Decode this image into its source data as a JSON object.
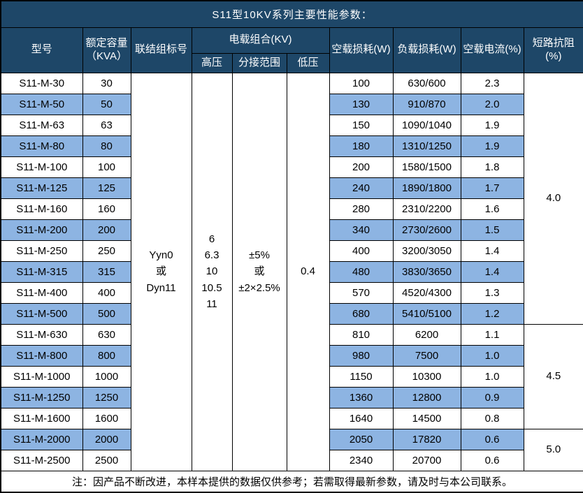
{
  "title": "S11型10KV系列主要性能参数：",
  "colors": {
    "header_bg": "#1e4768",
    "header_text": "#ffffff",
    "band_row_bg": "#8db4e2",
    "border": "#000000"
  },
  "header": {
    "model": "型号",
    "capacity": "额定容量\n（KVA）",
    "connection": "联结组标号",
    "voltage_group": "电载组合(KV)",
    "hv": "高压",
    "tap_range": "分接范围",
    "lv": "低压",
    "no_load_loss": "空载损耗(W)",
    "load_loss": "负载损耗(W)",
    "no_load_current": "空载电流(%)",
    "impedance": "短路抗阻(%)"
  },
  "merged": {
    "connection_group": "Yyn0\n或\nDyn11",
    "hv_values": "6\n6.3\n10\n10.5\n11",
    "tap_range": "±5%\n或\n±2×2.5%",
    "lv_value": "0.4"
  },
  "rows": [
    {
      "model": "S11-M-30",
      "capacity": "30",
      "no_load_loss": "100",
      "load_loss": "630/600",
      "no_load_current": "2.3"
    },
    {
      "model": "S11-M-50",
      "capacity": "50",
      "no_load_loss": "130",
      "load_loss": "910/870",
      "no_load_current": "2.0"
    },
    {
      "model": "S11-M-63",
      "capacity": "63",
      "no_load_loss": "150",
      "load_loss": "1090/1040",
      "no_load_current": "1.9"
    },
    {
      "model": "S11-M-80",
      "capacity": "80",
      "no_load_loss": "180",
      "load_loss": "1310/1250",
      "no_load_current": "1.9"
    },
    {
      "model": "S11-M-100",
      "capacity": "100",
      "no_load_loss": "200",
      "load_loss": "1580/1500",
      "no_load_current": "1.8"
    },
    {
      "model": "S11-M-125",
      "capacity": "125",
      "no_load_loss": "240",
      "load_loss": "1890/1800",
      "no_load_current": "1.7"
    },
    {
      "model": "S11-M-160",
      "capacity": "160",
      "no_load_loss": "280",
      "load_loss": "2310/2200",
      "no_load_current": "1.6"
    },
    {
      "model": "S11-M-200",
      "capacity": "200",
      "no_load_loss": "340",
      "load_loss": "2730/2600",
      "no_load_current": "1.5"
    },
    {
      "model": "S11-M-250",
      "capacity": "250",
      "no_load_loss": "400",
      "load_loss": "3200/3050",
      "no_load_current": "1.4"
    },
    {
      "model": "S11-M-315",
      "capacity": "315",
      "no_load_loss": "480",
      "load_loss": "3830/3650",
      "no_load_current": "1.4"
    },
    {
      "model": "S11-M-400",
      "capacity": "400",
      "no_load_loss": "570",
      "load_loss": "4520/4300",
      "no_load_current": "1.3"
    },
    {
      "model": "S11-M-500",
      "capacity": "500",
      "no_load_loss": "680",
      "load_loss": "5410/5100",
      "no_load_current": "1.2"
    },
    {
      "model": "S11-M-630",
      "capacity": "630",
      "no_load_loss": "810",
      "load_loss": "6200",
      "no_load_current": "1.1"
    },
    {
      "model": "S11-M-800",
      "capacity": "800",
      "no_load_loss": "980",
      "load_loss": "7500",
      "no_load_current": "1.0"
    },
    {
      "model": "S11-M-1000",
      "capacity": "1000",
      "no_load_loss": "1150",
      "load_loss": "10300",
      "no_load_current": "1.0"
    },
    {
      "model": "S11-M-1250",
      "capacity": "1250",
      "no_load_loss": "1360",
      "load_loss": "12800",
      "no_load_current": "0.9"
    },
    {
      "model": "S11-M-1600",
      "capacity": "1600",
      "no_load_loss": "1640",
      "load_loss": "14500",
      "no_load_current": "0.8"
    },
    {
      "model": "S11-M-2000",
      "capacity": "2000",
      "no_load_loss": "2050",
      "load_loss": "17820",
      "no_load_current": "0.6"
    },
    {
      "model": "S11-M-2500",
      "capacity": "2500",
      "no_load_loss": "2340",
      "load_loss": "20700",
      "no_load_current": "0.6"
    }
  ],
  "impedance_groups": [
    {
      "value": "4.0",
      "span": 12
    },
    {
      "value": "4.5",
      "span": 5
    },
    {
      "value": "5.0",
      "span": 2
    }
  ],
  "footnote": "注：因产品不断改进，本样本提供的数据仅供参考；若需取得最新参数，请及时与本公司联系。"
}
